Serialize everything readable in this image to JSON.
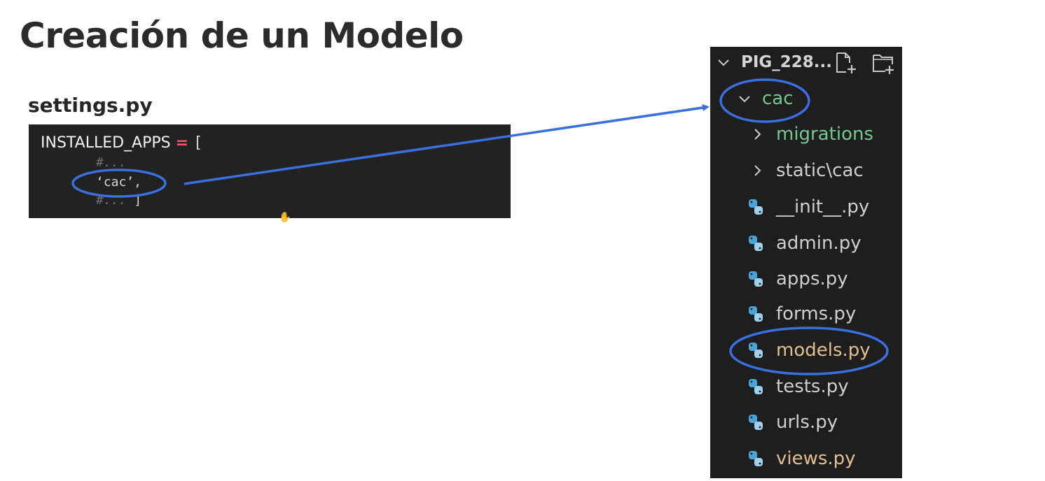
{
  "slide": {
    "title": "Creación de un Modelo",
    "code_caption": "settings.py"
  },
  "code": {
    "line1_name": "INSTALLED_APPS",
    "line1_op": "=",
    "line1_bracket": "[",
    "line2": "#...",
    "line3": "‘cac’,",
    "line4_comment": "#...",
    "line4_bracket": "]"
  },
  "explorer": {
    "header_label": "PIG_228...",
    "folder": "cac",
    "subfolders": [
      {
        "label": "migrations"
      },
      {
        "label": "static\\cac"
      }
    ],
    "files": [
      {
        "label": "__init__.py"
      },
      {
        "label": "admin.py"
      },
      {
        "label": "apps.py"
      },
      {
        "label": "forms.py"
      },
      {
        "label": "models.py"
      },
      {
        "label": "tests.py"
      },
      {
        "label": "urls.py"
      },
      {
        "label": "views.py"
      }
    ]
  },
  "colors": {
    "annotation_blue": "#3a6fe0",
    "folder_green": "#73c991",
    "modified_orange": "#e2c08d",
    "python_blue": "#4aa3d8",
    "python_light": "#9fd0ee",
    "code_background": "#222222",
    "explorer_background": "#1e1e1e"
  }
}
